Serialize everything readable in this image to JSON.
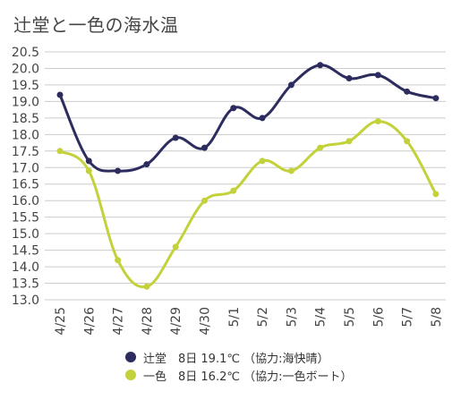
{
  "title": "辻堂と一色の海水温",
  "colors": {
    "series1": "#2c2c5e",
    "series2": "#c3d13a",
    "grid": "#cccccc"
  },
  "legend": [
    {
      "label": "辻堂　8日 19.1℃ （協力:海快晴）"
    },
    {
      "label": "一色　8日 16.2℃ （協力:一色ボート）"
    }
  ],
  "chart_data": {
    "type": "line",
    "title": "辻堂と一色の海水温",
    "categories": [
      "4/25",
      "4/26",
      "4/27",
      "4/28",
      "4/29",
      "4/30",
      "5/1",
      "5/2",
      "5/3",
      "5/4",
      "5/5",
      "5/6",
      "5/7",
      "5/8"
    ],
    "series": [
      {
        "name": "辻堂",
        "values": [
          19.2,
          17.2,
          16.9,
          17.1,
          17.9,
          17.6,
          18.8,
          18.5,
          19.5,
          20.1,
          19.7,
          19.8,
          19.3,
          19.1
        ]
      },
      {
        "name": "一色",
        "values": [
          17.5,
          16.9,
          14.2,
          13.4,
          14.6,
          16.0,
          16.3,
          17.2,
          16.9,
          17.6,
          17.8,
          18.4,
          17.8,
          16.2
        ]
      }
    ],
    "ylim": [
      13.0,
      20.5
    ],
    "yticks": [
      "13.0",
      "13.5",
      "14.0",
      "14.5",
      "15.0",
      "15.5",
      "16.0",
      "16.5",
      "17.0",
      "17.5",
      "18.0",
      "18.5",
      "19.0",
      "19.5",
      "20.0",
      "20.5"
    ],
    "grid": true,
    "legend_position": "bottom",
    "smooth": true
  }
}
